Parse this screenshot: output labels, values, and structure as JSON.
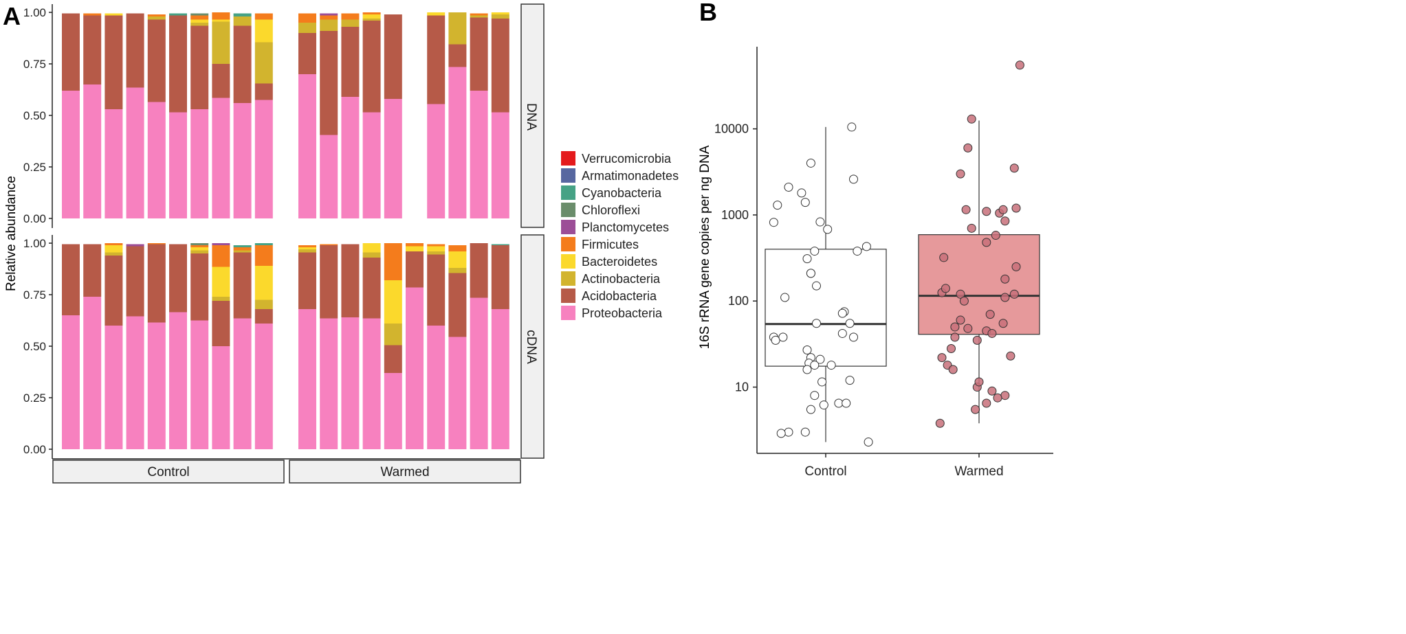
{
  "panel_labels": {
    "a": "A",
    "b": "B"
  },
  "chart_data": [
    {
      "id": "A",
      "type": "bar",
      "stacked": true,
      "ylabel": "Relative abundance",
      "yticks": [
        "0.00",
        "0.25",
        "0.50",
        "0.75",
        "1.00"
      ],
      "ylim": [
        0,
        1
      ],
      "facet_rows": [
        "DNA",
        "cDNA"
      ],
      "facet_cols": [
        "Control",
        "Warmed"
      ],
      "legend_position": "right",
      "colors": {
        "Proteobacteria": "#F781BF",
        "Acidobacteria": "#B65A48",
        "Actinobacteria": "#D2B42E",
        "Bacteroidetes": "#FBD92C",
        "Firmicutes": "#F47C1C",
        "Planctomycetes": "#9C4E97",
        "Chloroflexi": "#6A8D6B",
        "Cyanobacteria": "#46A285",
        "Armatimonadetes": "#5767A0",
        "Verrucomicrobia": "#E41A1C"
      },
      "legend": [
        "Verrucomicrobia",
        "Armatimonadetes",
        "Cyanobacteria",
        "Chloroflexi",
        "Planctomycetes",
        "Firmicutes",
        "Bacteroidetes",
        "Actinobacteria",
        "Acidobacteria",
        "Proteobacteria"
      ],
      "stack_order": [
        "Proteobacteria",
        "Acidobacteria",
        "Actinobacteria",
        "Bacteroidetes",
        "Firmicutes",
        "Planctomycetes",
        "Chloroflexi",
        "Cyanobacteria",
        "Armatimonadetes",
        "Verrucomicrobia"
      ],
      "panels": {
        "DNA_Control": [
          {
            "Proteobacteria": 0.62,
            "Acidobacteria": 0.375
          },
          {
            "Proteobacteria": 0.65,
            "Acidobacteria": 0.335,
            "Firmicutes": 0.01
          },
          {
            "Proteobacteria": 0.53,
            "Acidobacteria": 0.455,
            "Bacteroidetes": 0.01
          },
          {
            "Proteobacteria": 0.635,
            "Acidobacteria": 0.36
          },
          {
            "Proteobacteria": 0.565,
            "Acidobacteria": 0.4,
            "Actinobacteria": 0.015,
            "Firmicutes": 0.01
          },
          {
            "Proteobacteria": 0.515,
            "Acidobacteria": 0.47,
            "Cyanobacteria": 0.01
          },
          {
            "Proteobacteria": 0.53,
            "Acidobacteria": 0.405,
            "Actinobacteria": 0.015,
            "Bacteroidetes": 0.015,
            "Firmicutes": 0.02,
            "Chloroflexi": 0.01
          },
          {
            "Proteobacteria": 0.585,
            "Acidobacteria": 0.165,
            "Actinobacteria": 0.205,
            "Bacteroidetes": 0.01,
            "Firmicutes": 0.035
          },
          {
            "Proteobacteria": 0.56,
            "Acidobacteria": 0.375,
            "Actinobacteria": 0.045,
            "Cyanobacteria": 0.015
          },
          {
            "Proteobacteria": 0.575,
            "Acidobacteria": 0.08,
            "Actinobacteria": 0.2,
            "Bacteroidetes": 0.11,
            "Firmicutes": 0.03
          }
        ],
        "DNA_Warmed": [
          {
            "Proteobacteria": 0.7,
            "Acidobacteria": 0.2,
            "Actinobacteria": 0.05,
            "Firmicutes": 0.045
          },
          {
            "Proteobacteria": 0.405,
            "Acidobacteria": 0.505,
            "Actinobacteria": 0.055,
            "Firmicutes": 0.02,
            "Planctomycetes": 0.01
          },
          {
            "Proteobacteria": 0.59,
            "Acidobacteria": 0.34,
            "Actinobacteria": 0.035,
            "Firmicutes": 0.03
          },
          {
            "Proteobacteria": 0.515,
            "Acidobacteria": 0.445,
            "Actinobacteria": 0.01,
            "Bacteroidetes": 0.02,
            "Firmicutes": 0.01
          },
          {
            "Proteobacteria": 0.58,
            "Acidobacteria": 0.41
          },
          null,
          {
            "Proteobacteria": 0.555,
            "Acidobacteria": 0.43,
            "Bacteroidetes": 0.015
          },
          {
            "Proteobacteria": 0.735,
            "Acidobacteria": 0.11,
            "Actinobacteria": 0.155
          },
          {
            "Proteobacteria": 0.62,
            "Acidobacteria": 0.355,
            "Actinobacteria": 0.01,
            "Firmicutes": 0.01
          },
          {
            "Proteobacteria": 0.515,
            "Acidobacteria": 0.455,
            "Actinobacteria": 0.02,
            "Bacteroidetes": 0.01
          }
        ],
        "cDNA_Control": [
          {
            "Proteobacteria": 0.65,
            "Acidobacteria": 0.345
          },
          {
            "Proteobacteria": 0.74,
            "Acidobacteria": 0.255
          },
          {
            "Proteobacteria": 0.6,
            "Acidobacteria": 0.34,
            "Actinobacteria": 0.015,
            "Bacteroidetes": 0.035,
            "Firmicutes": 0.01
          },
          {
            "Proteobacteria": 0.645,
            "Acidobacteria": 0.34,
            "Planctomycetes": 0.01
          },
          {
            "Proteobacteria": 0.615,
            "Acidobacteria": 0.38,
            "Firmicutes": 0.005
          },
          {
            "Proteobacteria": 0.665,
            "Acidobacteria": 0.33
          },
          {
            "Proteobacteria": 0.625,
            "Acidobacteria": 0.325,
            "Actinobacteria": 0.015,
            "Bacteroidetes": 0.015,
            "Firmicutes": 0.01,
            "Chloroflexi": 0.01
          },
          {
            "Proteobacteria": 0.5,
            "Acidobacteria": 0.22,
            "Actinobacteria": 0.02,
            "Bacteroidetes": 0.145,
            "Firmicutes": 0.105,
            "Planctomycetes": 0.01
          },
          {
            "Proteobacteria": 0.635,
            "Acidobacteria": 0.32,
            "Actinobacteria": 0.01,
            "Firmicutes": 0.015,
            "Cyanobacteria": 0.01
          },
          {
            "Proteobacteria": 0.61,
            "Acidobacteria": 0.07,
            "Actinobacteria": 0.045,
            "Bacteroidetes": 0.165,
            "Firmicutes": 0.1,
            "Cyanobacteria": 0.01
          }
        ],
        "cDNA_Warmed": [
          {
            "Proteobacteria": 0.68,
            "Acidobacteria": 0.275,
            "Actinobacteria": 0.015,
            "Bacteroidetes": 0.01,
            "Firmicutes": 0.01
          },
          {
            "Proteobacteria": 0.635,
            "Acidobacteria": 0.355,
            "Firmicutes": 0.005
          },
          {
            "Proteobacteria": 0.64,
            "Acidobacteria": 0.355
          },
          {
            "Proteobacteria": 0.635,
            "Acidobacteria": 0.295,
            "Actinobacteria": 0.025,
            "Bacteroidetes": 0.045
          },
          {
            "Proteobacteria": 0.37,
            "Acidobacteria": 0.135,
            "Actinobacteria": 0.105,
            "Bacteroidetes": 0.21,
            "Firmicutes": 0.18
          },
          {
            "Proteobacteria": 0.785,
            "Acidobacteria": 0.175,
            "Bacteroidetes": 0.025,
            "Firmicutes": 0.015
          },
          {
            "Proteobacteria": 0.6,
            "Acidobacteria": 0.345,
            "Actinobacteria": 0.015,
            "Bacteroidetes": 0.025,
            "Firmicutes": 0.01
          },
          {
            "Proteobacteria": 0.545,
            "Acidobacteria": 0.31,
            "Actinobacteria": 0.025,
            "Bacteroidetes": 0.08,
            "Firmicutes": 0.03
          },
          {
            "Proteobacteria": 0.735,
            "Acidobacteria": 0.265
          },
          {
            "Proteobacteria": 0.68,
            "Acidobacteria": 0.31,
            "Cyanobacteria": 0.005
          }
        ]
      }
    },
    {
      "id": "B",
      "type": "scatter",
      "subtype": "boxplot_with_jitter",
      "ylabel": "16S rRNA gene copies per ng DNA",
      "yscale": "log10",
      "ylim": [
        1.7,
        90000
      ],
      "yticks": [
        10,
        100,
        1000,
        10000
      ],
      "ytick_labels": [
        "10",
        "100",
        "1000",
        "10000"
      ],
      "categories": [
        "Control",
        "Warmed"
      ],
      "boxes": [
        {
          "name": "Control",
          "fill": "#FFFFFF",
          "q1": 17.5,
          "median": 54,
          "q3": 400,
          "whisker_low": 2.3,
          "whisker_high": 10500
        },
        {
          "name": "Warmed",
          "fill": "#E6999B",
          "q1": 41,
          "median": 115,
          "q3": 590,
          "whisker_low": 3.8,
          "whisker_high": 12500
        }
      ],
      "points": [
        {
          "group": "Control",
          "fill": "#FFFFFF",
          "jitter": [
            0.14,
            -0.08,
            -0.2,
            -0.13,
            0.15,
            -0.11,
            -0.26,
            -0.28,
            -0.03,
            0.01,
            -0.06,
            -0.1,
            -0.08,
            -0.08,
            0.17,
            0.22,
            -0.05,
            0.1,
            0.09,
            -0.22,
            -0.05,
            0.13,
            0.09,
            -0.28,
            -0.27,
            -0.1,
            0.15,
            -0.03,
            -0.08,
            -0.09,
            0.03,
            -0.1,
            -0.02,
            -0.06,
            -0.01,
            0.07,
            -0.2,
            -0.11,
            0.13,
            -0.06,
            -0.08,
            0.11,
            -0.24,
            -0.23,
            0.23
          ],
          "values": [
            10500,
            4000,
            2100,
            1800,
            2600,
            1400,
            1300,
            820,
            830,
            680,
            380,
            310,
            210,
            210,
            380,
            430,
            150,
            75,
            72,
            110,
            55,
            55,
            42,
            38,
            35,
            27,
            38,
            21,
            22,
            19,
            18,
            16,
            11.5,
            8,
            6.2,
            6.5,
            3,
            3,
            12,
            18,
            5.5,
            6.5,
            2.9,
            38,
            2.3
          ]
        },
        {
          "group": "Warmed",
          "fill": "#C8707A",
          "jitter": [
            0.22,
            -0.04,
            -0.06,
            0.19,
            -0.1,
            -0.07,
            0.2,
            0.04,
            0.11,
            0.13,
            -0.04,
            0.14,
            0.04,
            0.09,
            -0.19,
            -0.1,
            0.2,
            0.14,
            0.19,
            0.14,
            -0.08,
            -0.2,
            -0.18,
            0.06,
            -0.1,
            -0.13,
            0.04,
            0.13,
            -0.06,
            0.07,
            -0.13,
            -0.01,
            -0.15,
            -0.17,
            -0.2,
            -0.14,
            -0.01,
            0.0,
            0.07,
            0.14,
            0.04,
            0.1,
            -0.02,
            0.17,
            -0.21
          ],
          "values": [
            55000,
            13000,
            6000,
            3500,
            3000,
            1150,
            1200,
            1100,
            1050,
            1150,
            700,
            850,
            480,
            580,
            320,
            120,
            250,
            180,
            120,
            110,
            100,
            125,
            140,
            70,
            60,
            50,
            45,
            55,
            48,
            42,
            38,
            35,
            28,
            18,
            22,
            16,
            10,
            11.5,
            9,
            8,
            6.5,
            7.5,
            5.5,
            23,
            3.8
          ]
        }
      ]
    }
  ]
}
